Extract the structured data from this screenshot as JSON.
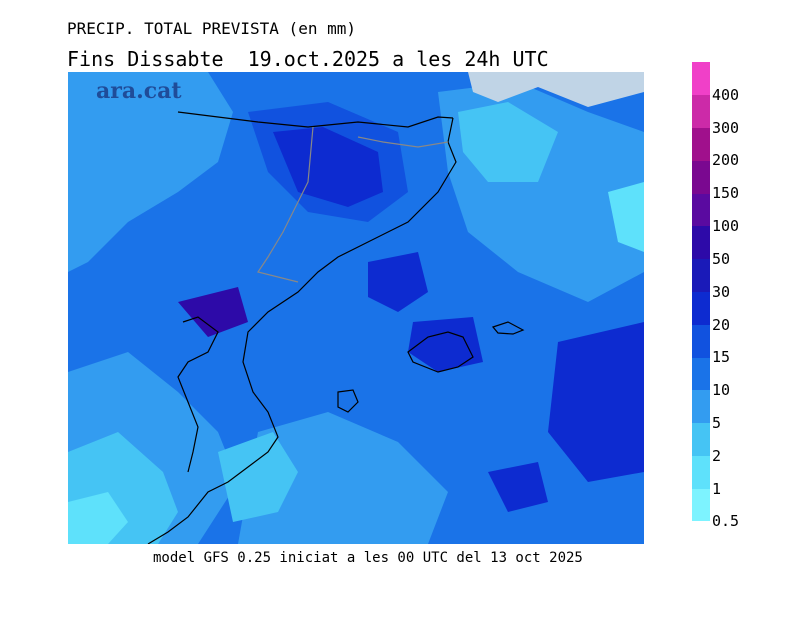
{
  "title_line1": "PRECIP. TOTAL PREVISTA (en mm)",
  "title_line2": "Fins Dissabte  19.oct.2025 a les 24h UTC",
  "watermark": "ara.cat",
  "footer": "model GFS 0.25 iniciat a les 00 UTC del 13 oct 2025",
  "legend": {
    "levels": [
      "0.5",
      "1",
      "2",
      "5",
      "10",
      "15",
      "20",
      "30",
      "50",
      "100",
      "150",
      "200",
      "300",
      "400"
    ],
    "colors": [
      "#7df3ff",
      "#5ee1fb",
      "#45c4f4",
      "#339cf0",
      "#1a73e8",
      "#1152df",
      "#0d2bd0",
      "#1a1ab8",
      "#2d0aa8",
      "#5a0aa0",
      "#7a0890",
      "#a0108c",
      "#cc2aa8",
      "#f040c8"
    ]
  },
  "map": {
    "background_color": "#1a73e8",
    "land_outside_color": "#c0d4e6"
  }
}
